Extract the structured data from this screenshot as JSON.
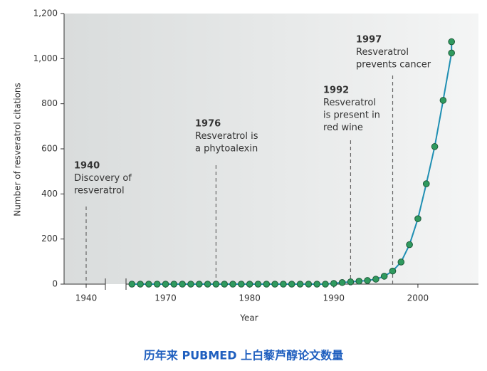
{
  "chart_data": {
    "type": "line",
    "x_label": "Year",
    "y_label": "Number of resveratrol citations",
    "caption": "历年来 PUBMED 上白藜芦醇论文数量",
    "x_segments": [
      {
        "xlim": [
          1936,
          1943
        ],
        "xticks": [
          1940
        ]
      },
      {
        "xlim": [
          1965.3,
          2007.2
        ],
        "xticks": [
          1970,
          1980,
          1990,
          2000
        ]
      }
    ],
    "ylim": [
      0,
      1200
    ],
    "yticks": [
      0,
      200,
      400,
      600,
      800,
      {
        "value": 1000,
        "label": "1,000"
      },
      {
        "value": 1200,
        "label": "1,200"
      }
    ],
    "series": [
      {
        "name": "Resveratrol citations",
        "color": "#1f8fb3",
        "marker_color": "#2f9a5e",
        "x": [
          1966,
          1967,
          1968,
          1969,
          1970,
          1971,
          1972,
          1973,
          1974,
          1975,
          1976,
          1977,
          1978,
          1979,
          1980,
          1981,
          1982,
          1983,
          1984,
          1985,
          1986,
          1987,
          1988,
          1989,
          1990,
          1991,
          1992,
          1993,
          1994,
          1995,
          1996,
          1997,
          1998,
          1999,
          2000,
          2001,
          2002,
          2003,
          2004,
          2004
        ],
        "values": [
          0,
          0,
          0,
          0,
          0,
          0,
          0,
          0,
          0,
          0,
          0,
          0,
          0,
          0,
          0,
          0,
          0,
          0,
          0,
          0,
          0,
          0,
          0,
          0,
          3,
          7,
          10,
          13,
          16,
          22,
          35,
          58,
          98,
          175,
          290,
          445,
          610,
          815,
          1025,
          1075
        ]
      }
    ],
    "annotations": [
      {
        "year": 1940,
        "lines": [
          "Discovery of",
          "resveratrol"
        ]
      },
      {
        "year": 1976,
        "lines": [
          "Resveratrol is",
          "a phytoalexin"
        ]
      },
      {
        "year": 1992,
        "lines": [
          "Resveratrol",
          "is present in",
          "red wine"
        ]
      },
      {
        "year": 1997,
        "lines": [
          "Resveratrol",
          "prevents cancer"
        ]
      }
    ]
  }
}
